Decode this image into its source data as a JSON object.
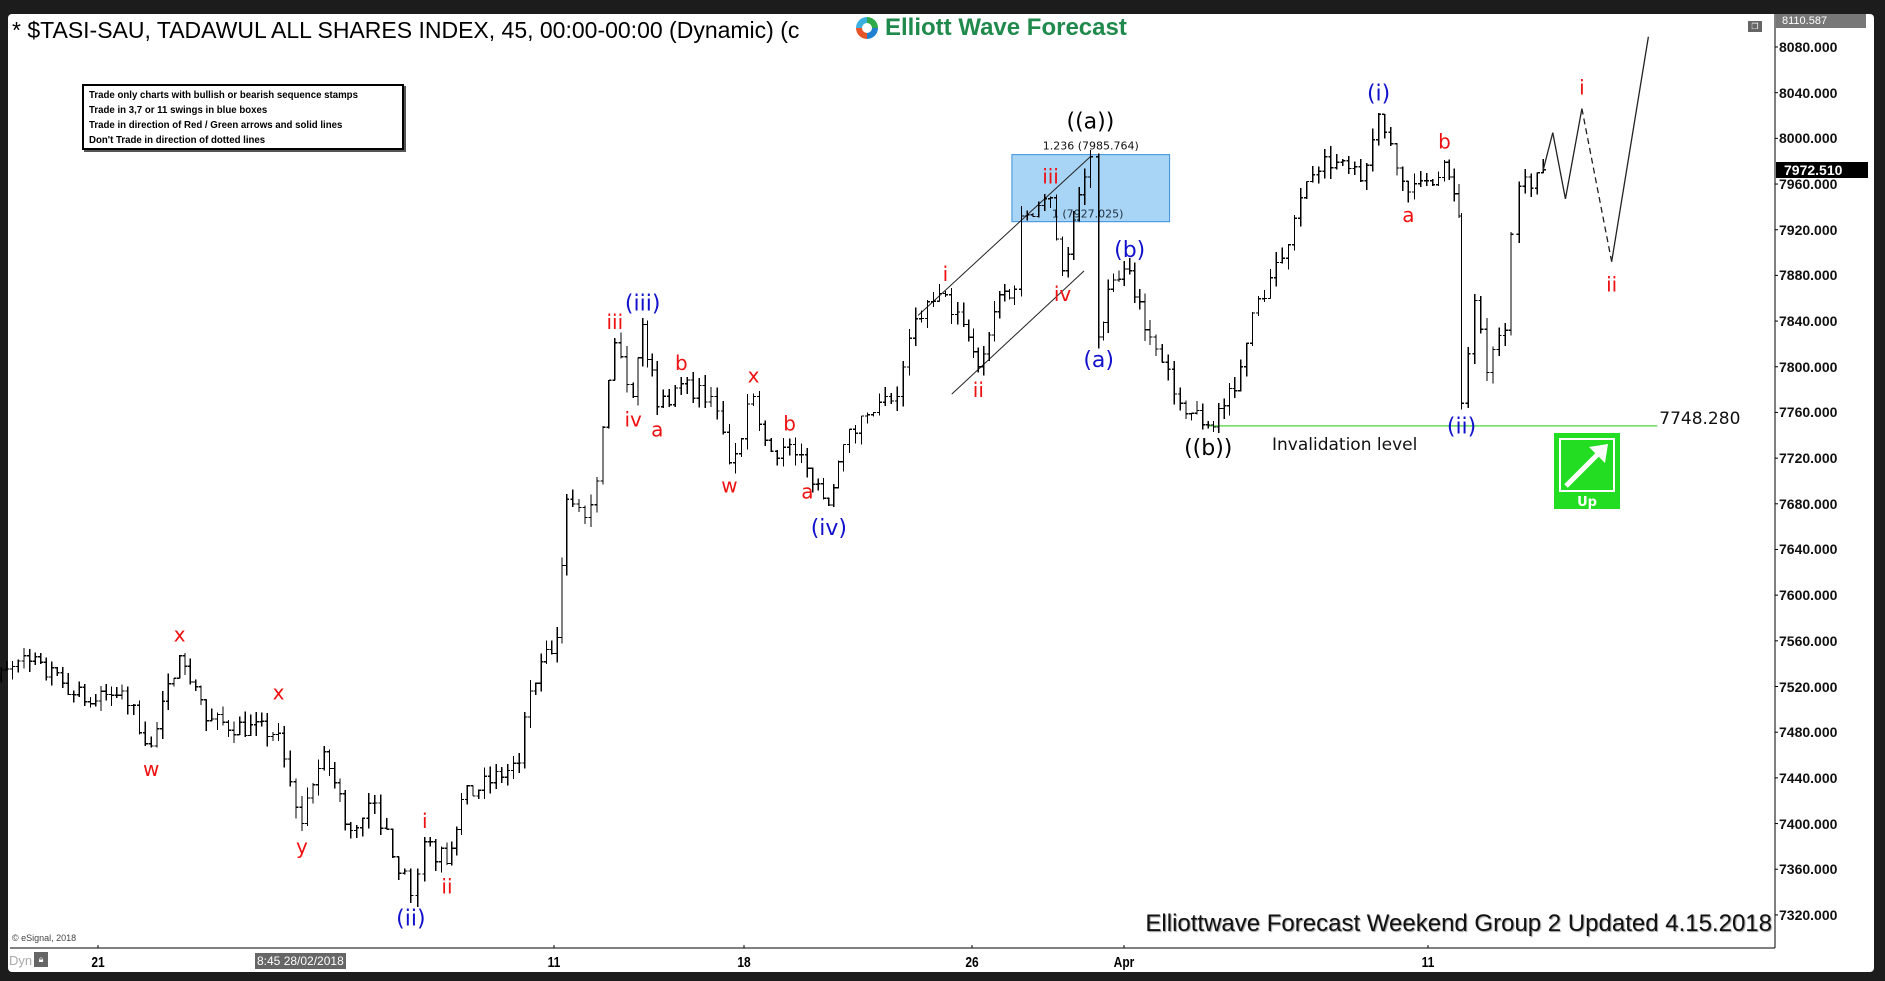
{
  "header": {
    "title": "* $TASI-SAU, TADAWUL ALL SHARES INDEX, 45, 00:00-00:00 (Dynamic) (c",
    "logo_text": "Elliott Wave Forecast"
  },
  "legend": [
    "Trade only charts with bullish or bearish sequence stamps",
    "Trade in 3,7 or 11 swings in blue boxes",
    "Trade in direction of Red / Green arrows and solid lines",
    "Don't Trade in direction of dotted lines"
  ],
  "footer": {
    "text": "Elliottwave Forecast Weekend Group 2 Updated 4.15.2018",
    "copyright": "© eSignal, 2018",
    "dyn_label": "Dyn",
    "cursor_time": "8:45 28/02/2018"
  },
  "colors": {
    "red": "#ee1111",
    "blue": "#1111cc",
    "black": "#000000",
    "green_line": "#66dd55",
    "box_fill": "#a8d4f5",
    "box_stroke": "#3a8fd8",
    "up_green": "#22dd22"
  },
  "icons": {
    "logo": "ewf-swirl-logo",
    "lock": "lock-icon",
    "restore": "window-restore-icon",
    "up": "up-arrow-icon"
  },
  "chart_data": {
    "type": "ohlc",
    "ylim": [
      7300,
      8110.587
    ],
    "yticks": [
      "8080.000",
      "8040.000",
      "8000.000",
      "7960.000",
      "7920.000",
      "7880.000",
      "7840.000",
      "7800.000",
      "7760.000",
      "7720.000",
      "7680.000",
      "7640.000",
      "7600.000",
      "7560.000",
      "7520.000",
      "7480.000",
      "7440.000",
      "7400.000",
      "7360.000",
      "7320.000"
    ],
    "axis_top": "8110.587",
    "last_price": "7972.510",
    "xticks": [
      {
        "date": "2018-02-21",
        "label": "21"
      },
      {
        "date": "2018-03-11",
        "label": "11"
      },
      {
        "date": "2018-03-18",
        "label": "18"
      },
      {
        "date": "2018-03-26",
        "label": "26"
      },
      {
        "date": "2018-04-01",
        "label": "Apr"
      },
      {
        "date": "2018-04-11",
        "label": "11"
      }
    ],
    "price_path": [
      {
        "t": "2018-02-15 13:30",
        "p": 7516
      },
      {
        "t": "2018-02-19 11:00",
        "p": 7542
      },
      {
        "t": "2018-02-20 14:00",
        "p": 7505
      },
      {
        "t": "2018-02-21 13:10",
        "p": 7516
      },
      {
        "t": "2018-02-22 12:00",
        "p": 7468,
        "label": "w",
        "color": "red",
        "pos": "below"
      },
      {
        "t": "2018-02-25 10:45",
        "p": 7547,
        "label": "x",
        "color": "red",
        "pos": "above"
      },
      {
        "t": "2018-02-25 14:15",
        "p": 7490
      },
      {
        "t": "2018-02-27 13:45",
        "p": 7479,
        "label": "x",
        "color": "red",
        "pos": "above",
        "lift": 20
      },
      {
        "t": "2018-02-28 11:50",
        "p": 7400,
        "label": "y",
        "color": "red",
        "pos": "below"
      },
      {
        "t": "2018-02-28 14:45",
        "p": 7463
      },
      {
        "t": "2018-03-01 13:15",
        "p": 7394
      },
      {
        "t": "2018-03-04 11:25",
        "p": 7418
      },
      {
        "t": "2018-03-05 11:10",
        "p": 7337,
        "label": "(ii)",
        "color": "blue",
        "pos": "below"
      },
      {
        "t": "2018-03-05 13:00",
        "p": 7384,
        "label": "i",
        "color": "red",
        "pos": "above"
      },
      {
        "t": "2018-03-06 10:55",
        "p": 7365,
        "label": "ii",
        "color": "red",
        "pos": "below"
      },
      {
        "t": "2018-03-06 12:50",
        "p": 7421
      },
      {
        "t": "2018-03-08 10:25",
        "p": 7453
      },
      {
        "t": "2018-03-08 11:55",
        "p": 7516
      },
      {
        "t": "2018-03-11 10:25",
        "p": 7563
      },
      {
        "t": "2018-03-11 11:40",
        "p": 7684
      },
      {
        "t": "2018-03-11 14:05",
        "p": 7668
      },
      {
        "t": "2018-03-12 10:40",
        "p": 7700
      },
      {
        "t": "2018-03-12 13:00",
        "p": 7821,
        "label": "iii",
        "color": "red",
        "pos": "above"
      },
      {
        "t": "2018-03-13 10:25",
        "p": 7774,
        "label": "iv",
        "color": "red",
        "pos": "below"
      },
      {
        "t": "2018-03-13 11:40",
        "p": 7837,
        "label": "(iii)",
        "color": "blue",
        "pos": "above"
      },
      {
        "t": "2018-03-13 13:35",
        "p": 7765,
        "label": "a",
        "color": "red",
        "pos": "below"
      },
      {
        "t": "2018-03-14 11:45",
        "p": 7785,
        "label": "b",
        "color": "red",
        "pos": "above"
      },
      {
        "t": "2018-03-15 10:40",
        "p": 7774
      },
      {
        "t": "2018-03-15 13:05",
        "p": 7716,
        "label": "w",
        "color": "red",
        "pos": "below"
      },
      {
        "t": "2018-03-18 11:15",
        "p": 7774,
        "label": "x",
        "color": "red",
        "pos": "above"
      },
      {
        "t": "2018-03-18 13:35",
        "p": 7726
      },
      {
        "t": "2018-03-19 11:00",
        "p": 7732,
        "label": "b",
        "color": "red",
        "pos": "above"
      },
      {
        "t": "2018-03-19 13:20",
        "p": 7711,
        "label": "a",
        "color": "red",
        "pos": "below"
      },
      {
        "t": "2018-03-20 11:10",
        "p": 7679,
        "label": "(iv)",
        "color": "blue",
        "pos": "below"
      },
      {
        "t": "2018-03-20 13:05",
        "p": 7732
      },
      {
        "t": "2018-03-21 11:15",
        "p": 7758
      },
      {
        "t": "2018-03-22 10:10",
        "p": 7774
      },
      {
        "t": "2018-03-22 12:35",
        "p": 7842
      },
      {
        "t": "2018-03-25 11:30",
        "p": 7863,
        "label": "i",
        "color": "red",
        "pos": "above"
      },
      {
        "t": "2018-03-25 13:55",
        "p": 7837
      },
      {
        "t": "2018-03-26 10:50",
        "p": 7800,
        "label": "ii",
        "color": "red",
        "pos": "below"
      },
      {
        "t": "2018-03-26 13:40",
        "p": 7863
      },
      {
        "t": "2018-03-27 10:35",
        "p": 7868
      },
      {
        "t": "2018-03-27 11:30",
        "p": 7932
      },
      {
        "t": "2018-03-28 10:20",
        "p": 7948,
        "label": "iii",
        "color": "red",
        "pos": "above"
      },
      {
        "t": "2018-03-28 11:55",
        "p": 7884,
        "label": "iv",
        "color": "red",
        "pos": "below"
      },
      {
        "t": "2018-03-29 10:35",
        "p": 7984,
        "label": "((a))",
        "color": "black",
        "pos": "above",
        "lift": 14
      },
      {
        "t": "2018-03-29 11:40",
        "p": 7826,
        "label": "(a)",
        "color": "blue",
        "pos": "below"
      },
      {
        "t": "2018-03-29 12:55",
        "p": 7868
      },
      {
        "t": "2018-04-01 10:45",
        "p": 7884,
        "label": "(b)",
        "color": "blue",
        "pos": "above"
      },
      {
        "t": "2018-04-01 13:25",
        "p": 7826
      },
      {
        "t": "2018-04-02 12:25",
        "p": 7768
      },
      {
        "t": "2018-04-03 11:05",
        "p": 7749,
        "label": "((b))",
        "color": "black",
        "pos": "below"
      },
      {
        "t": "2018-04-03 14:35",
        "p": 7779
      },
      {
        "t": "2018-04-04 11:55",
        "p": 7847
      },
      {
        "t": "2018-04-05 10:50",
        "p": 7895
      },
      {
        "t": "2018-04-05 13:15",
        "p": 7948
      },
      {
        "t": "2018-04-08 11:25",
        "p": 7984
      },
      {
        "t": "2018-04-09 11:10",
        "p": 7963
      },
      {
        "t": "2018-04-09 13:30",
        "p": 8021,
        "label": "(i)",
        "color": "blue",
        "pos": "above"
      },
      {
        "t": "2018-04-10 10:55",
        "p": 7974
      },
      {
        "t": "2018-04-10 12:25",
        "p": 7953,
        "label": "a",
        "color": "red",
        "pos": "below"
      },
      {
        "t": "2018-04-10 14:50",
        "p": 7963
      },
      {
        "t": "2018-04-11 12:10",
        "p": 7979,
        "label": "b",
        "color": "red",
        "pos": "above"
      },
      {
        "t": "2018-04-11 14:05",
        "p": 7932
      },
      {
        "t": "2018-04-11 14:25",
        "p": 7768,
        "label": "(ii)",
        "color": "blue",
        "pos": "below"
      },
      {
        "t": "2018-04-12 11:10",
        "p": 7858
      },
      {
        "t": "2018-04-12 12:45",
        "p": 7795
      },
      {
        "t": "2018-04-15 10:10",
        "p": 7832
      },
      {
        "t": "2018-04-15 10:55",
        "p": 7916
      },
      {
        "t": "2018-04-15 12:00",
        "p": 7958
      },
      {
        "t": "2018-04-16 10:10",
        "p": 7972.51
      }
    ],
    "projection": [
      {
        "t": "2018-04-16 10:10",
        "p": 7972.51,
        "style": "solid"
      },
      {
        "t": "2018-04-16 11:25",
        "p": 8005,
        "style": "solid"
      },
      {
        "t": "2018-04-16 13:05",
        "p": 7947,
        "style": "solid"
      },
      {
        "t": "2018-04-17 10:15",
        "p": 8026,
        "style": "dashed",
        "label": "i",
        "color": "red",
        "pos": "above"
      },
      {
        "t": "2018-04-17 14:10",
        "p": 7892,
        "style": "solid",
        "label": "ii",
        "color": "red",
        "pos": "below"
      },
      {
        "t": "2018-04-18 14:00",
        "p": 8089
      }
    ],
    "fib_box": {
      "top": 7985.764,
      "bottom": 7927.025,
      "t0": "2018-03-27 10:15",
      "t1": "2018-04-02 11:00",
      "top_label": "1.236 (7985.764)",
      "bottom_label": "1 (7927.025)"
    },
    "channel": [
      {
        "t0": "2018-03-22 12:55",
        "p0": 7845,
        "t1": "2018-03-29 10:35",
        "p1": 7984
      },
      {
        "t0": "2018-03-25 12:20",
        "p0": 7776,
        "t1": "2018-03-28 14:45",
        "p1": 7884
      }
    ],
    "invalidation": {
      "price": 7748.28,
      "price_label": "7748.280",
      "label": "Invalidation level",
      "t0": "2018-04-03 11:05",
      "t1": "2018-04-19 10:10"
    },
    "up_stamp": {
      "label": "Up"
    }
  }
}
